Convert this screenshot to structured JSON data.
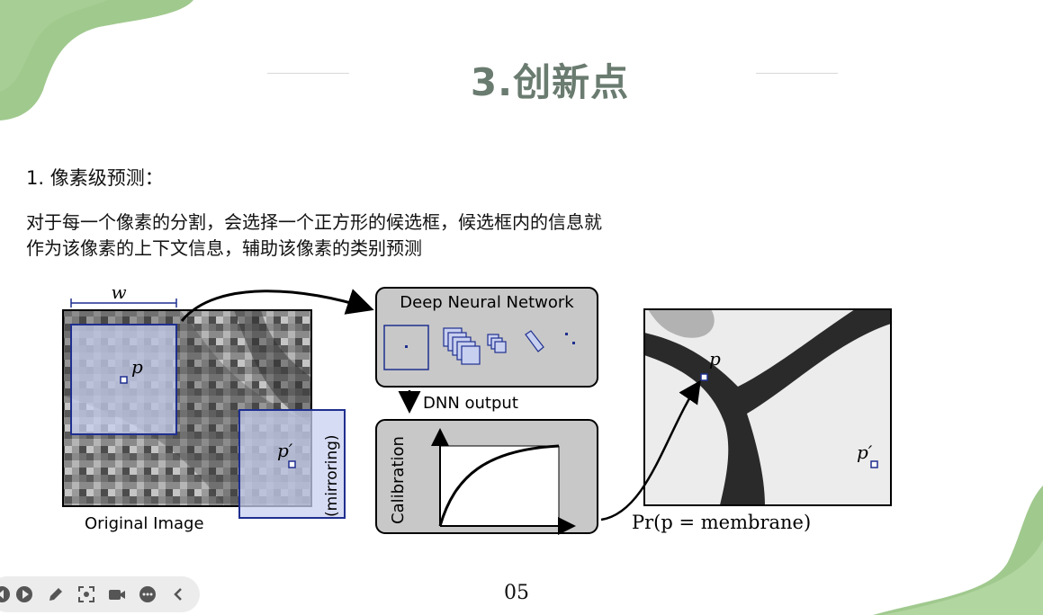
{
  "slide": {
    "title": "3.创新点",
    "heading": "1. 像素级预测：",
    "paragraph_lines": [
      "对于每一个像素的分割，会选择一个正方形的候选框，候选框内的信息就",
      "作为该像素的上下文信息，辅助该像素的类别预测"
    ],
    "page_number": "05"
  },
  "figure": {
    "window_label": "w",
    "point_label": "p",
    "mirror_point_label": "p′",
    "mirroring_label": "(mirroring)",
    "original_image_label": "Original Image",
    "dnn_title": "Deep Neural Network",
    "dnn_output_label": "DNN output",
    "calibration_label": "Calibration",
    "result_point_label": "p",
    "result_mirror_label": "p′",
    "probability_label": "Pr(p = membrane)"
  },
  "colors": {
    "title": "#6a7b70",
    "accent_green": "#8fbf7a",
    "frame_blue": "#1f2f8f",
    "panel_gray": "#c8c8c8"
  },
  "toolbar": {
    "icons": [
      "previous-icon",
      "play-icon",
      "pen-icon",
      "screenshot-icon",
      "camera-icon",
      "more-icon",
      "collapse-icon"
    ]
  }
}
